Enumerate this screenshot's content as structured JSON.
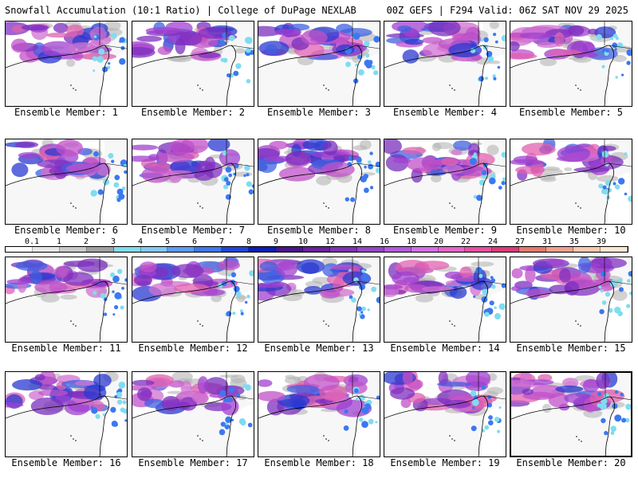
{
  "header": {
    "left_title": "Snowfall Accumulation (10:1 Ratio) | College of DuPage NEXLAB",
    "right_title": "00Z GEFS | F294 Valid: 06Z SAT NOV 29 2025"
  },
  "panels": [
    {
      "label": "Ensemble Member: 1"
    },
    {
      "label": "Ensemble Member: 2"
    },
    {
      "label": "Ensemble Member: 3"
    },
    {
      "label": "Ensemble Member: 4"
    },
    {
      "label": "Ensemble Member: 5"
    },
    {
      "label": "Ensemble Member: 6"
    },
    {
      "label": "Ensemble Member: 7"
    },
    {
      "label": "Ensemble Member: 8"
    },
    {
      "label": "Ensemble Member: 9"
    },
    {
      "label": "Ensemble Member: 10"
    },
    {
      "label": "Ensemble Member: 11"
    },
    {
      "label": "Ensemble Member: 12"
    },
    {
      "label": "Ensemble Member: 13"
    },
    {
      "label": "Ensemble Member: 14"
    },
    {
      "label": "Ensemble Member: 15"
    },
    {
      "label": "Ensemble Member: 16"
    },
    {
      "label": "Ensemble Member: 17"
    },
    {
      "label": "Ensemble Member: 18"
    },
    {
      "label": "Ensemble Member: 19"
    },
    {
      "label": "Ensemble Member: 20"
    }
  ],
  "legend": {
    "labels": [
      "0.1",
      "1",
      "2",
      "3",
      "4",
      "5",
      "6",
      "7",
      "8",
      "9",
      "10",
      "12",
      "14",
      "16",
      "18",
      "20",
      "22",
      "24",
      "27",
      "31",
      "35",
      "39"
    ],
    "colors": [
      "#ffffff",
      "#e6e6e6",
      "#c8c8c8",
      "#a0a0a0",
      "#7fdcf0",
      "#82c8ff",
      "#5a9bff",
      "#3c78f0",
      "#1e46dc",
      "#0a1eb4",
      "#4a148c",
      "#6a1fa0",
      "#7f32b4",
      "#9646c8",
      "#b45adc",
      "#d26ee6",
      "#e664c8",
      "#e650a0",
      "#dc3c78",
      "#e6786e",
      "#f0a08c",
      "#f8c8aa",
      "#fce6d2"
    ]
  }
}
